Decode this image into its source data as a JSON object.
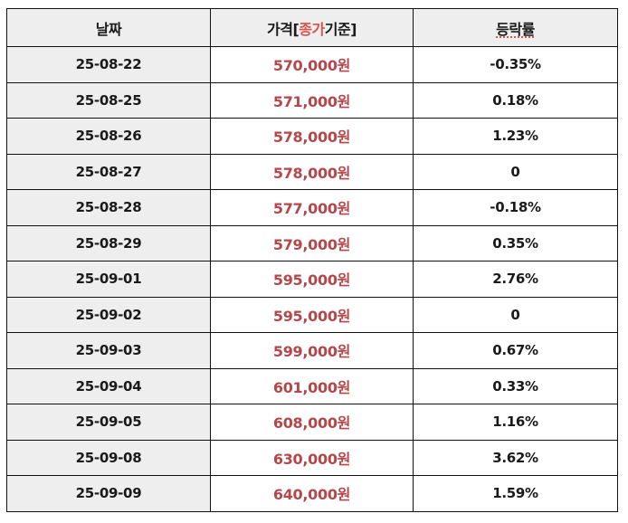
{
  "colors": {
    "header_bg": "#eeeeee",
    "date_cell_bg": "#eeeeee",
    "price_text": "#b5474b",
    "header_accent": "#d9534f",
    "border": "#111111",
    "text": "#1a1a1a"
  },
  "table": {
    "headers": {
      "date": "날짜",
      "price_prefix": "가격[",
      "price_accent": "종가",
      "price_suffix": "기준]",
      "rate": "등락률"
    },
    "rows": [
      {
        "date": "25-08-22",
        "price": "570,000원",
        "rate": "-0.35%"
      },
      {
        "date": "25-08-25",
        "price": "571,000원",
        "rate": "0.18%"
      },
      {
        "date": "25-08-26",
        "price": "578,000원",
        "rate": "1.23%"
      },
      {
        "date": "25-08-27",
        "price": "578,000원",
        "rate": "0"
      },
      {
        "date": "25-08-28",
        "price": "577,000원",
        "rate": "-0.18%"
      },
      {
        "date": "25-08-29",
        "price": "579,000원",
        "rate": "0.35%"
      },
      {
        "date": "25-09-01",
        "price": "595,000원",
        "rate": "2.76%"
      },
      {
        "date": "25-09-02",
        "price": "595,000원",
        "rate": "0"
      },
      {
        "date": "25-09-03",
        "price": "599,000원",
        "rate": "0.67%"
      },
      {
        "date": "25-09-04",
        "price": "601,000원",
        "rate": "0.33%"
      },
      {
        "date": "25-09-05",
        "price": "608,000원",
        "rate": "1.16%"
      },
      {
        "date": "25-09-08",
        "price": "630,000원",
        "rate": "3.62%"
      },
      {
        "date": "25-09-09",
        "price": "640,000원",
        "rate": "1.59%"
      }
    ]
  }
}
